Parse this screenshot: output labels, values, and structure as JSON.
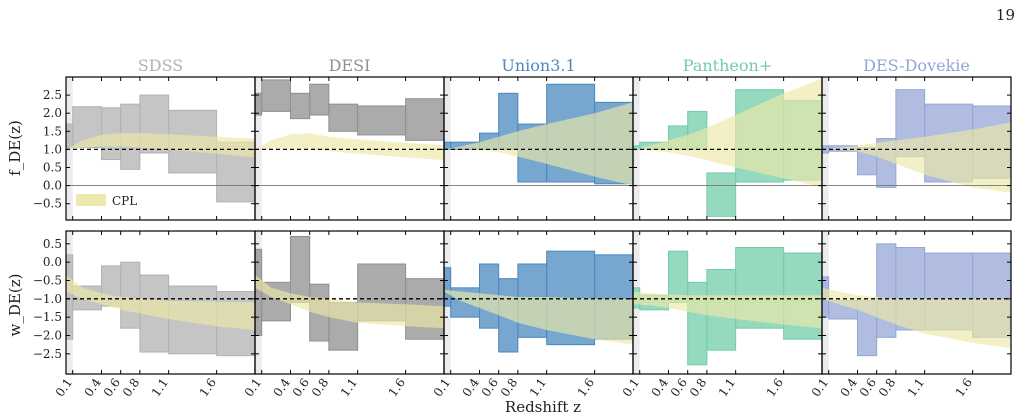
{
  "page_number": "19",
  "chart_data": {
    "type": "bar",
    "xlabel": "Redshift z",
    "row_labels": [
      "f_DE(z)",
      "w_DE(z)"
    ],
    "x_tick_labels": [
      "0.1",
      "0.4",
      "0.6",
      "0.8",
      "1.1",
      "1.6"
    ],
    "x_ticks": [
      0.1,
      0.4,
      0.6,
      0.8,
      1.1,
      1.6
    ],
    "xlim": [
      0.03,
      2.0
    ],
    "rows": [
      {
        "ylim": [
          -0.95,
          3.0
        ],
        "yticks": [
          -0.5,
          0.0,
          0.5,
          1.0,
          1.5,
          2.0,
          2.5
        ],
        "ytick_labels": [
          "−0.5",
          "0.0",
          "0.5",
          "1.0",
          "1.5",
          "2.0",
          "2.5"
        ],
        "reference_lines": [
          {
            "y": 1.0,
            "style": "dashed"
          },
          {
            "y": 0.0,
            "style": "solid"
          }
        ]
      },
      {
        "ylim": [
          -3.05,
          0.85
        ],
        "yticks": [
          -2.5,
          -2.0,
          -1.5,
          -1.0,
          -0.5,
          0.0,
          0.5
        ],
        "ytick_labels": [
          "−2.5",
          "−2.0",
          "−1.5",
          "−1.0",
          "−0.5",
          "0.0",
          "0.5"
        ],
        "reference_lines": [
          {
            "y": -1.0,
            "style": "dashed"
          }
        ]
      }
    ],
    "legend": {
      "label": "CPL",
      "color": "#ece8a6",
      "placement": "lower-left"
    },
    "bin_edges": [
      0.03,
      0.1,
      0.4,
      0.6,
      0.8,
      1.1,
      1.6,
      2.0
    ],
    "panels": [
      {
        "name": "SDSS",
        "color": "#b2b2b2",
        "fde_bins": [
          [
            1.05,
            1.7
          ],
          [
            1.05,
            2.18
          ],
          [
            0.72,
            2.15
          ],
          [
            0.45,
            2.25
          ],
          [
            0.9,
            2.5
          ],
          [
            0.35,
            2.08
          ],
          [
            -0.45,
            1.2
          ]
        ],
        "wde_bins": [
          [
            -2.1,
            0.2
          ],
          [
            -1.3,
            -0.65
          ],
          [
            -1.2,
            -0.1
          ],
          [
            -1.8,
            0.0
          ],
          [
            -2.45,
            -0.35
          ],
          [
            -2.5,
            -0.65
          ],
          [
            -2.55,
            -0.8
          ]
        ],
        "cpl_fde": {
          "z": [
            0.03,
            0.2,
            0.4,
            0.6,
            0.8,
            1.1,
            1.6,
            2.0
          ],
          "lo": [
            1.0,
            1.05,
            1.08,
            1.08,
            1.05,
            1.0,
            0.88,
            0.78
          ],
          "hi": [
            1.0,
            1.25,
            1.4,
            1.45,
            1.45,
            1.42,
            1.35,
            1.3
          ]
        },
        "cpl_wde": {
          "z": [
            0.03,
            0.2,
            0.4,
            0.6,
            0.8,
            1.1,
            1.6,
            2.0
          ],
          "lo": [
            -0.8,
            -1.0,
            -1.15,
            -1.3,
            -1.4,
            -1.55,
            -1.75,
            -1.85
          ],
          "hi": [
            -0.35,
            -0.7,
            -0.85,
            -0.95,
            -1.0,
            -1.05,
            -1.08,
            -1.1
          ]
        }
      },
      {
        "name": "DESI",
        "color": "#8f8f8f",
        "fde_bins": [
          [
            1.95,
            2.55
          ],
          [
            2.05,
            2.92
          ],
          [
            1.85,
            2.55
          ],
          [
            1.95,
            2.8
          ],
          [
            1.5,
            2.25
          ],
          [
            1.4,
            2.2
          ],
          [
            1.25,
            2.4
          ]
        ],
        "wde_bins": [
          [
            -2.0,
            0.35
          ],
          [
            -1.6,
            -0.55
          ],
          [
            -1.1,
            0.7
          ],
          [
            -2.15,
            -0.6
          ],
          [
            -2.4,
            -1.1
          ],
          [
            -1.6,
            -0.05
          ],
          [
            -2.1,
            -0.45
          ]
        ],
        "cpl_fde": {
          "z": [
            0.03,
            0.2,
            0.4,
            0.6,
            0.8,
            1.1,
            1.6,
            2.0
          ],
          "lo": [
            1.0,
            1.02,
            1.02,
            1.0,
            0.95,
            0.88,
            0.78,
            0.7
          ],
          "hi": [
            1.0,
            1.25,
            1.42,
            1.45,
            1.35,
            1.28,
            1.18,
            1.12
          ]
        },
        "cpl_wde": {
          "z": [
            0.03,
            0.2,
            0.4,
            0.6,
            0.8,
            1.1,
            1.6,
            2.0
          ],
          "lo": [
            -0.7,
            -0.95,
            -1.15,
            -1.35,
            -1.5,
            -1.65,
            -1.75,
            -1.8
          ],
          "hi": [
            -0.35,
            -0.7,
            -0.85,
            -0.95,
            -1.0,
            -1.1,
            -1.15,
            -1.2
          ]
        }
      },
      {
        "name": "Union3.1",
        "color": "#4a88bf",
        "fde_bins": [
          [
            1.0,
            1.2
          ],
          [
            1.0,
            1.2
          ],
          [
            1.0,
            1.45
          ],
          [
            1.0,
            2.55
          ],
          [
            0.1,
            1.7
          ],
          [
            0.1,
            2.8
          ],
          [
            0.05,
            2.3
          ]
        ],
        "wde_bins": [
          [
            -1.2,
            -0.15
          ],
          [
            -1.5,
            -0.7
          ],
          [
            -1.8,
            -0.05
          ],
          [
            -2.45,
            -0.45
          ],
          [
            -2.05,
            -0.05
          ],
          [
            -2.25,
            0.3
          ],
          [
            -2.1,
            0.2
          ]
        ],
        "cpl_fde": {
          "z": [
            0.03,
            0.2,
            0.4,
            0.6,
            0.8,
            1.1,
            1.6,
            2.0
          ],
          "lo": [
            1.0,
            1.0,
            0.98,
            0.92,
            0.8,
            0.6,
            0.25,
            0.0
          ],
          "hi": [
            1.0,
            1.08,
            1.2,
            1.35,
            1.5,
            1.7,
            2.0,
            2.3
          ]
        },
        "cpl_wde": {
          "z": [
            0.03,
            0.2,
            0.4,
            0.6,
            0.8,
            1.1,
            1.6,
            2.0
          ],
          "lo": [
            -0.8,
            -1.05,
            -1.25,
            -1.45,
            -1.65,
            -1.85,
            -2.1,
            -2.25
          ],
          "hi": [
            -0.75,
            -0.8,
            -0.85,
            -0.9,
            -0.95,
            -0.95,
            -1.0,
            -1.0
          ]
        }
      },
      {
        "name": "Pantheon+",
        "color": "#72ccaa",
        "fde_bins": [
          [
            1.0,
            1.1
          ],
          [
            1.0,
            1.2
          ],
          [
            1.0,
            1.65
          ],
          [
            1.0,
            2.05
          ],
          [
            -0.85,
            0.35
          ],
          [
            0.1,
            2.65
          ],
          [
            0.15,
            2.35
          ]
        ],
        "wde_bins": [
          [
            -1.25,
            -0.7
          ],
          [
            -1.3,
            -0.9
          ],
          [
            -1.1,
            0.3
          ],
          [
            -2.8,
            -0.55
          ],
          [
            -2.4,
            -0.2
          ],
          [
            -1.8,
            0.4
          ],
          [
            -2.1,
            0.25
          ]
        ],
        "cpl_fde": {
          "z": [
            0.03,
            0.2,
            0.4,
            0.6,
            0.8,
            1.1,
            1.6,
            2.0
          ],
          "lo": [
            1.0,
            0.98,
            0.92,
            0.82,
            0.7,
            0.5,
            0.2,
            -0.05
          ],
          "hi": [
            1.0,
            1.1,
            1.25,
            1.4,
            1.6,
            1.95,
            2.55,
            2.95
          ]
        },
        "cpl_wde": {
          "z": [
            0.03,
            0.2,
            0.4,
            0.6,
            0.8,
            1.1,
            1.6,
            2.0
          ],
          "lo": [
            -1.15,
            -1.18,
            -1.25,
            -1.35,
            -1.45,
            -1.55,
            -1.7,
            -1.8
          ],
          "hi": [
            -0.8,
            -0.85,
            -0.88,
            -0.9,
            -0.9,
            -0.9,
            -0.9,
            -0.9
          ]
        }
      },
      {
        "name": "DES-Dovekie",
        "color": "#95a6d6",
        "fde_bins": [
          [
            0.9,
            1.1
          ],
          [
            0.95,
            1.1
          ],
          [
            0.3,
            1.05
          ],
          [
            -0.05,
            1.3
          ],
          [
            0.8,
            2.65
          ],
          [
            0.1,
            2.25
          ],
          [
            0.2,
            2.2
          ]
        ],
        "wde_bins": [
          [
            -1.5,
            -0.4
          ],
          [
            -1.55,
            -1.05
          ],
          [
            -2.55,
            -1.05
          ],
          [
            -2.05,
            0.5
          ],
          [
            -1.85,
            0.4
          ],
          [
            -1.85,
            0.25
          ],
          [
            -2.05,
            0.25
          ]
        ],
        "cpl_fde": {
          "z": [
            0.03,
            0.2,
            0.4,
            0.6,
            0.8,
            1.1,
            1.6,
            2.0
          ],
          "lo": [
            1.0,
            1.0,
            0.95,
            0.8,
            0.6,
            0.3,
            -0.05,
            -0.2
          ],
          "hi": [
            1.0,
            1.05,
            1.1,
            1.18,
            1.25,
            1.35,
            1.55,
            1.75
          ]
        },
        "cpl_wde": {
          "z": [
            0.03,
            0.2,
            0.4,
            0.6,
            0.8,
            1.1,
            1.6,
            2.0
          ],
          "lo": [
            -1.0,
            -1.15,
            -1.3,
            -1.5,
            -1.7,
            -1.95,
            -2.2,
            -2.35
          ],
          "hi": [
            -0.7,
            -0.8,
            -0.9,
            -0.95,
            -1.0,
            -1.0,
            -1.0,
            -1.0
          ]
        }
      }
    ]
  }
}
